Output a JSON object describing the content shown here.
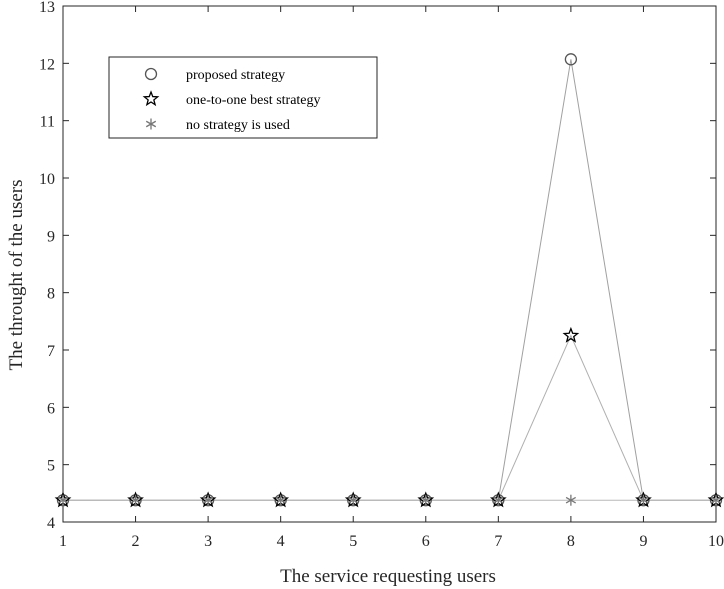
{
  "chart_data": {
    "type": "line",
    "xlabel": "The service requesting users",
    "ylabel": "The throught of the users",
    "x": [
      1,
      2,
      3,
      4,
      5,
      6,
      7,
      8,
      9,
      10
    ],
    "xlim": [
      1,
      10
    ],
    "ylim": [
      4,
      13
    ],
    "xticks": [
      1,
      2,
      3,
      4,
      5,
      6,
      7,
      8,
      9,
      10
    ],
    "yticks": [
      4,
      5,
      6,
      7,
      8,
      9,
      10,
      11,
      12,
      13
    ],
    "grid": false,
    "legend_position": "top-left",
    "series": [
      {
        "name": "proposed strategy",
        "marker": "circle",
        "color": "#555555",
        "values": [
          4.38,
          4.38,
          4.38,
          4.38,
          4.38,
          4.38,
          4.38,
          12.07,
          4.38,
          4.38
        ]
      },
      {
        "name": "one-to-one best strategy",
        "marker": "star",
        "color": "#000000",
        "values": [
          4.38,
          4.38,
          4.38,
          4.38,
          4.38,
          4.38,
          4.38,
          7.25,
          4.38,
          4.38
        ]
      },
      {
        "name": "no strategy is used",
        "marker": "asterisk",
        "color": "#777777",
        "values": [
          4.38,
          4.38,
          4.38,
          4.38,
          4.38,
          4.38,
          4.38,
          4.38,
          4.38,
          4.38
        ]
      }
    ]
  }
}
